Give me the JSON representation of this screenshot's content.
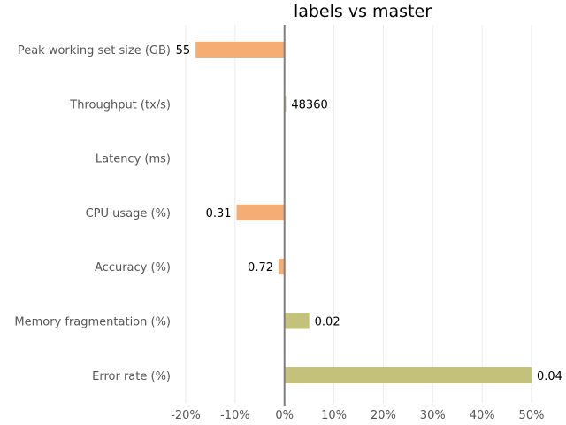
{
  "chart_data": {
    "type": "bar",
    "orientation": "horizontal",
    "title": "labels vs master",
    "xlabel": "",
    "ylabel": "",
    "xlim": [
      -20,
      50
    ],
    "xticks": [
      -20,
      -10,
      0,
      10,
      20,
      30,
      40,
      50
    ],
    "xtick_labels": [
      "-20%",
      "-10%",
      "0%",
      "10%",
      "20%",
      "30%",
      "40%",
      "50%"
    ],
    "grid": "vertical",
    "categories": [
      "Peak working set size (GB)",
      "Throughput (tx/s)",
      "Latency (ms)",
      "CPU usage (%)",
      "Accuracy (%)",
      "Memory fragmentation (%)",
      "Error rate (%)"
    ],
    "values": [
      -18,
      0.3,
      0,
      -9.7,
      -1.2,
      5,
      50
    ],
    "data_labels": [
      "55",
      "48360",
      "",
      "0.31",
      "0.72",
      "0.02",
      "0.04"
    ],
    "colors": {
      "negative": "#f5ad73",
      "positive": "#c4c17a",
      "zero_line": "#7f7f7f",
      "grid": "#ebebeb"
    }
  }
}
